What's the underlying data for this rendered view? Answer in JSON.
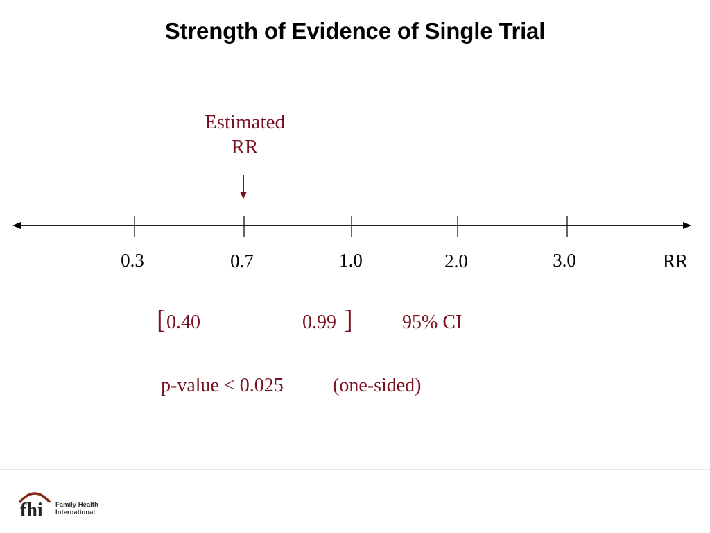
{
  "title": "Strength of Evidence of Single Trial",
  "estimate_label": {
    "line1": "Estimated",
    "line2": "RR"
  },
  "axis": {
    "unit_label": "RR",
    "ticks": [
      "0.3",
      "0.7",
      "1.0",
      "2.0",
      "3.0"
    ]
  },
  "ci": {
    "lower": "0.40",
    "upper": "0.99",
    "label": "95% CI"
  },
  "pvalue": {
    "text": "p-value < 0.025",
    "note": "(one-sided)"
  },
  "logo": {
    "mark": "fhi",
    "line1": "Family Health",
    "line2": "International"
  },
  "colors": {
    "accent": "#7a1120",
    "text": "#000000",
    "logo_arc": "#8a2a1a"
  },
  "icons": [
    "down-arrow-icon",
    "double-headed-arrow-icon"
  ]
}
